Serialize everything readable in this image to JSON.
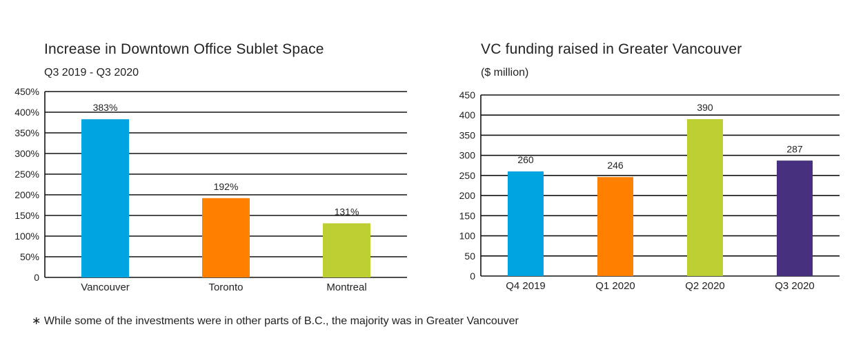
{
  "footnote": "∗ While some of the investments were in other parts of B.C., the majority was in Greater Vancouver",
  "chart_data": [
    {
      "type": "bar",
      "title": "Increase in Downtown Office Sublet Space",
      "subtitle": "Q3 2019 - Q3 2020",
      "categories": [
        "Vancouver",
        "Toronto",
        "Montreal"
      ],
      "values": [
        383,
        192,
        131
      ],
      "value_labels": [
        "383%",
        "192%",
        "131%"
      ],
      "colors": [
        "#00A4E0",
        "#FF8000",
        "#BDCF32"
      ],
      "ylim": [
        0,
        450
      ],
      "yticks": [
        0,
        50,
        100,
        150,
        200,
        250,
        300,
        350,
        400,
        450
      ],
      "ytick_labels": [
        "0",
        "50%",
        "100%",
        "150%",
        "200%",
        "250%",
        "300%",
        "350%",
        "400%",
        "450%"
      ],
      "grid": true,
      "xlabel": "",
      "ylabel": ""
    },
    {
      "type": "bar",
      "title": "VC funding raised in Greater Vancouver",
      "subtitle": "($ million)",
      "categories": [
        "Q4 2019",
        "Q1 2020",
        "Q2 2020",
        "Q3 2020"
      ],
      "values": [
        260,
        246,
        390,
        287
      ],
      "value_labels": [
        "260",
        "246",
        "390",
        "287"
      ],
      "colors": [
        "#00A4E0",
        "#FF8000",
        "#BDCF32",
        "#47307D"
      ],
      "ylim": [
        0,
        450
      ],
      "yticks": [
        0,
        50,
        100,
        150,
        200,
        250,
        300,
        350,
        400,
        450
      ],
      "ytick_labels": [
        "0",
        "50",
        "100",
        "150",
        "200",
        "250",
        "300",
        "350",
        "400",
        "450"
      ],
      "grid": true,
      "xlabel": "",
      "ylabel": ""
    }
  ]
}
